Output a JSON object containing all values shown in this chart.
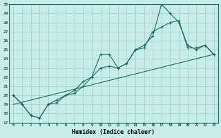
{
  "title": "",
  "xlabel": "Humidex (Indice chaleur)",
  "xlim": [
    -0.5,
    23.5
  ],
  "ylim": [
    17,
    30
  ],
  "xticks": [
    0,
    1,
    2,
    3,
    4,
    5,
    6,
    7,
    8,
    9,
    10,
    11,
    12,
    13,
    14,
    15,
    16,
    17,
    18,
    19,
    20,
    21,
    22,
    23
  ],
  "yticks": [
    17,
    18,
    19,
    20,
    21,
    22,
    23,
    24,
    25,
    26,
    27,
    28,
    29,
    30
  ],
  "bg_color": "#c8ede8",
  "grid_color": "#a8d4ce",
  "line_color": "#1a6b60",
  "line1_x": [
    0,
    1,
    2,
    3,
    4,
    5,
    6,
    7,
    8,
    9,
    10,
    11,
    12,
    13,
    14,
    15,
    16,
    17,
    18,
    19,
    20,
    21,
    22,
    23
  ],
  "line1_y": [
    20,
    19,
    17.8,
    17.5,
    19,
    19.5,
    20,
    20.5,
    21.5,
    22,
    24.5,
    24.5,
    23,
    23.5,
    25,
    25.5,
    26.5,
    30,
    29,
    28,
    25.5,
    25,
    25.5,
    24.5
  ],
  "line2_x": [
    0,
    1,
    2,
    3,
    4,
    5,
    6,
    7,
    8,
    9,
    10,
    11,
    12,
    13,
    14,
    15,
    16,
    17,
    18,
    19,
    20,
    21,
    22,
    23
  ],
  "line2_y": [
    20,
    19,
    17.8,
    17.5,
    19,
    19.2,
    20,
    20.2,
    21,
    22,
    23,
    23.2,
    23,
    23.5,
    25,
    25.2,
    27,
    27.5,
    28,
    28.2,
    25.2,
    25.2,
    25.5,
    24.5
  ],
  "line3_x": [
    0,
    23
  ],
  "line3_y": [
    19,
    24.5
  ]
}
